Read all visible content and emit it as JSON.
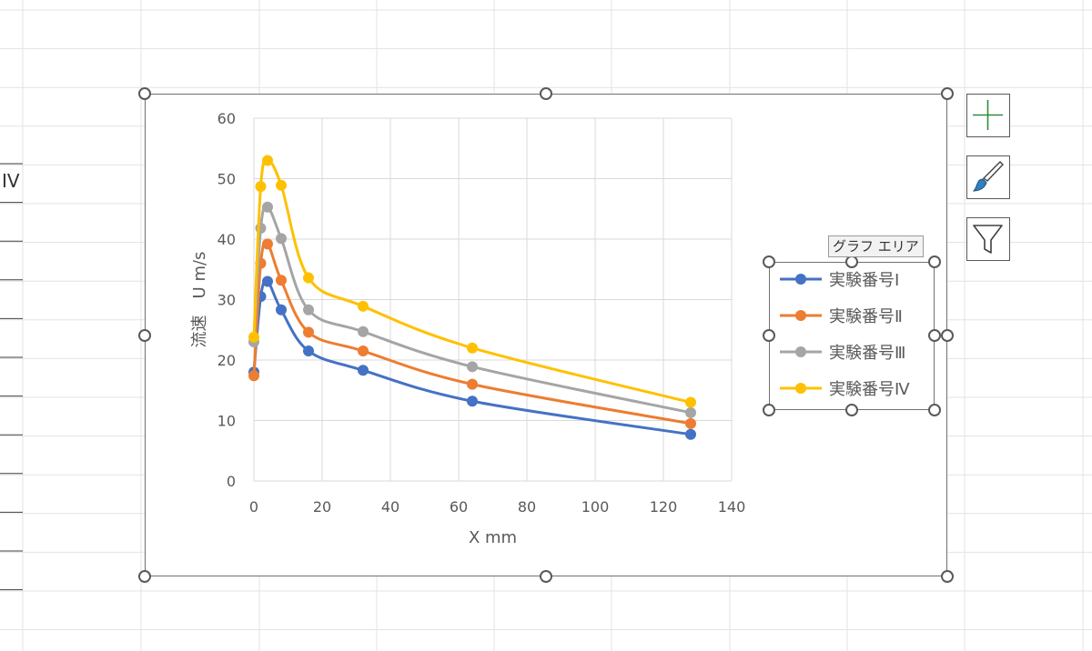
{
  "sheet": {
    "left_cell_text": "IV"
  },
  "tooltip": {
    "text": "グラフ エリア"
  },
  "side_buttons": [
    {
      "name": "chart-elements",
      "icon": "plus-icon",
      "color": "#2e8b3e"
    },
    {
      "name": "chart-styles",
      "icon": "paintbrush-icon",
      "color": "#2f7fc1"
    },
    {
      "name": "chart-filters",
      "icon": "funnel-icon",
      "color": "#595959"
    }
  ],
  "chart_data": {
    "type": "scatter",
    "title": "",
    "xlabel": "X mm",
    "ylabel": "流速　U m/s",
    "xlim": [
      0,
      140
    ],
    "ylim": [
      0,
      60
    ],
    "xticks": [
      0,
      20,
      40,
      60,
      80,
      100,
      120,
      140
    ],
    "yticks": [
      0,
      10,
      20,
      30,
      40,
      50,
      60
    ],
    "grid": true,
    "smooth_lines": true,
    "markers": true,
    "legend_position": "right",
    "x": [
      0,
      2,
      4,
      8,
      16,
      32,
      64,
      128
    ],
    "series": [
      {
        "name": "実験番号Ⅰ",
        "color": "#4472c4",
        "values": [
          18,
          30.5,
          33,
          28.3,
          21.5,
          18.3,
          13.2,
          7.7
        ]
      },
      {
        "name": "実験番号Ⅱ",
        "color": "#ed7d31",
        "values": [
          17.4,
          36,
          39.2,
          33.2,
          24.6,
          21.5,
          16,
          9.5
        ]
      },
      {
        "name": "実験番号Ⅲ",
        "color": "#a5a5a5",
        "values": [
          23,
          41.8,
          45.3,
          40.1,
          28.3,
          24.7,
          18.9,
          11.3
        ]
      },
      {
        "name": "実験番号Ⅳ",
        "color": "#ffc000",
        "values": [
          23.8,
          48.7,
          53,
          48.9,
          33.6,
          28.9,
          22,
          13
        ]
      }
    ]
  }
}
